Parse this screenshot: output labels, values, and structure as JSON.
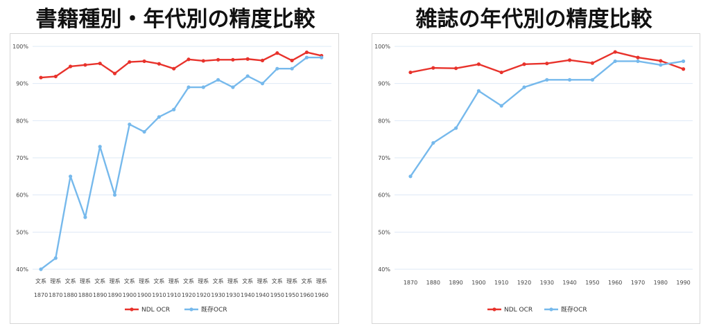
{
  "colors": {
    "ndl": "#e8322b",
    "existing": "#76b9ec",
    "grid": "#dde8f6"
  },
  "legend": {
    "ndl": "NDL OCR",
    "existing": "既存OCR"
  },
  "chart_data": [
    {
      "type": "line",
      "title": "書籍種別・年代別の精度比較",
      "x_top": [
        "文系",
        "理系",
        "文系",
        "理系",
        "文系",
        "理系",
        "文系",
        "理系",
        "文系",
        "理系",
        "文系",
        "理系",
        "文系",
        "理系",
        "文系",
        "理系",
        "文系",
        "理系",
        "文系",
        "理系"
      ],
      "x_bottom": [
        "1870",
        "1870",
        "1880",
        "1880",
        "1890",
        "1890",
        "1900",
        "1900",
        "1910",
        "1910",
        "1920",
        "1920",
        "1930",
        "1930",
        "1940",
        "1940",
        "1950",
        "1950",
        "1960",
        "1960"
      ],
      "y_ticks": [
        "40%",
        "50%",
        "60%",
        "70%",
        "80%",
        "90%",
        "100%"
      ],
      "ylim": [
        0.4,
        1.0
      ],
      "grid": true,
      "legend_position": "bottom",
      "series": [
        {
          "name": "NDL OCR",
          "values": [
            0.916,
            0.919,
            0.946,
            0.95,
            0.954,
            0.927,
            0.958,
            0.96,
            0.953,
            0.94,
            0.965,
            0.961,
            0.964,
            0.964,
            0.966,
            0.962,
            0.982,
            0.962,
            0.984,
            0.975
          ]
        },
        {
          "name": "既存OCR",
          "values": [
            0.4,
            0.43,
            0.65,
            0.54,
            0.73,
            0.6,
            0.79,
            0.77,
            0.81,
            0.83,
            0.89,
            0.89,
            0.91,
            0.89,
            0.92,
            0.9,
            0.94,
            0.94,
            0.97,
            0.97
          ]
        }
      ]
    },
    {
      "type": "line",
      "title": "雑誌の年代別の精度比較",
      "x_top": [],
      "x_bottom": [
        "1870",
        "1880",
        "1890",
        "1900",
        "1910",
        "1920",
        "1930",
        "1940",
        "1950",
        "1960",
        "1970",
        "1980",
        "1990"
      ],
      "y_ticks": [
        "40%",
        "50%",
        "60%",
        "70%",
        "80%",
        "90%",
        "100%"
      ],
      "ylim": [
        0.4,
        1.0
      ],
      "grid": true,
      "legend_position": "bottom",
      "series": [
        {
          "name": "NDL OCR",
          "values": [
            0.93,
            0.942,
            0.941,
            0.952,
            0.93,
            0.952,
            0.954,
            0.963,
            0.955,
            0.985,
            0.97,
            0.961,
            0.939
          ]
        },
        {
          "name": "既存OCR",
          "values": [
            0.65,
            0.74,
            0.78,
            0.88,
            0.84,
            0.89,
            0.91,
            0.91,
            0.91,
            0.96,
            0.96,
            0.95,
            0.96
          ]
        }
      ]
    }
  ]
}
